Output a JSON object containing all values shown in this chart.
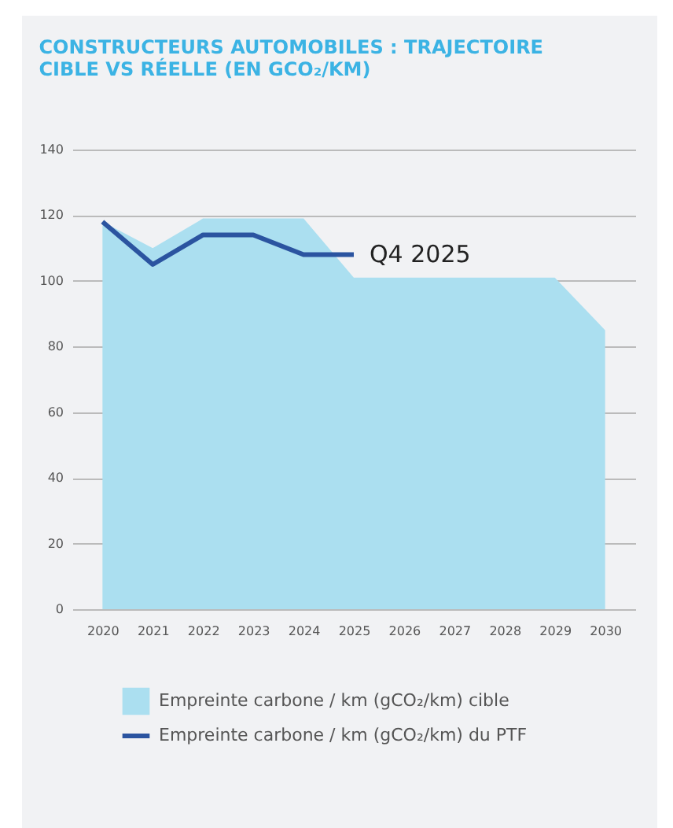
{
  "chart_data": {
    "type": "area",
    "title": [
      "CONSTRUCTEURS AUTOMOBILES : TRAJECTOIRE",
      "CIBLE VS RÉELLE (EN GCO₂/KM)"
    ],
    "categories": [
      "2020",
      "2021",
      "2022",
      "2023",
      "2024",
      "2025",
      "2026",
      "2027",
      "2028",
      "2029",
      "2030"
    ],
    "series": [
      {
        "name": "Empreinte carbone / km (gCO₂/km) cible",
        "color": "#abdff0",
        "values": [
          118,
          110,
          119,
          119,
          119,
          101,
          101,
          101,
          101,
          101,
          85
        ]
      },
      {
        "name": "Empreinte carbone / km (gCO₂/km) du PTF",
        "type": "line",
        "color": "#2b54a0",
        "values": [
          118,
          105,
          114,
          114,
          108,
          108,
          null,
          null,
          null,
          null,
          null
        ]
      }
    ],
    "annotations": [
      {
        "text": "Q4 2025",
        "x": "2025",
        "y": 108
      }
    ],
    "ylim": [
      0,
      140
    ],
    "yticks": [
      0,
      20,
      40,
      60,
      80,
      100,
      120,
      140
    ],
    "grid": "y",
    "legend": "bottom",
    "marker": "none",
    "line_style": "solid"
  }
}
